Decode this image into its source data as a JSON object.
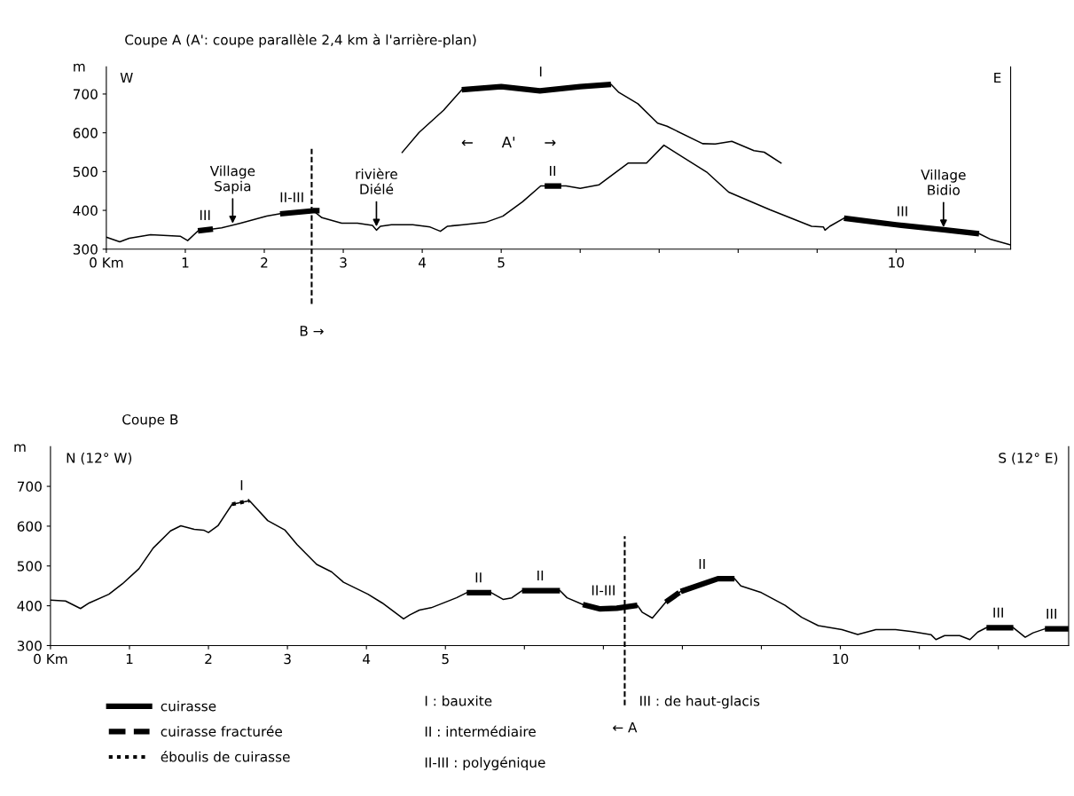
{
  "chart_data": [
    {
      "type": "line",
      "title": "Coupe A (A': coupe parallèle 2,4 km à l'arrière-plan)",
      "ylabel": "m",
      "xlim": [
        0,
        11.45
      ],
      "ylim": [
        300,
        770
      ],
      "xticks": [
        {
          "value": 0,
          "label": "0 Km"
        },
        1,
        2,
        3,
        4,
        5,
        {
          "value": 6,
          "label": null
        },
        {
          "value": 7,
          "label": null
        },
        {
          "value": 8,
          "label": null
        },
        {
          "value": 9,
          "label": null
        },
        10,
        {
          "value": 11,
          "label": null
        }
      ],
      "yticks": [
        300,
        400,
        500,
        600,
        700
      ],
      "grid": false,
      "marker": "none",
      "tick_labels": "xy",
      "series": [
        {
          "color": "#000000",
          "x": [
            0,
            0.17,
            0.29,
            0.56,
            0.94,
            1.03,
            1.16,
            1.46,
            1.7,
            2.03,
            2.3,
            2.62,
            2.73,
            2.98,
            3.18,
            3.37,
            3.42,
            3.47,
            3.61,
            3.88,
            4.1,
            4.23,
            4.32,
            4.52,
            4.8,
            5.02,
            5.27,
            5.5,
            5.82,
            6.0,
            6.24,
            6.61,
            6.84,
            7.06,
            7.6,
            7.88,
            8.4,
            8.93,
            9.08,
            9.1,
            9.16,
            9.34,
            10,
            10.6,
            11.05,
            11.2,
            11.45
          ],
          "values": [
            331,
            319,
            328,
            337,
            333,
            322,
            347,
            355,
            367,
            385,
            395,
            399,
            381,
            367,
            367,
            361,
            349,
            359,
            363,
            363,
            357,
            346,
            359,
            363,
            369,
            385,
            422,
            463,
            463,
            457,
            466,
            522,
            522,
            568,
            499,
            447,
            402,
            359,
            357,
            349,
            359,
            380,
            363,
            350,
            340,
            325,
            311
          ]
        },
        {
          "color": "#000000",
          "x": [
            3.74,
            3.96,
            4.27,
            4.5,
            5.0,
            5.49,
            6.0,
            6.39,
            6.49,
            6.73,
            6.98,
            7.1,
            7.55,
            7.71,
            7.92,
            8.2,
            8.33,
            8.55
          ],
          "values": [
            548,
            601,
            658,
            711,
            719,
            708,
            719,
            725,
            704,
            675,
            625,
            617,
            572,
            571,
            578,
            554,
            550,
            521
          ]
        },
        {
          "color": "#000000",
          "line_style": "solid",
          "x": [
            1.16,
            1.35,
            1.8,
            2.2,
            2.62,
            2.7,
            3.5,
            4.5,
            5.0,
            5.49,
            6.0,
            6.39,
            8.0,
            9.34,
            10,
            10.6,
            11.05
          ],
          "values": [
            347,
            352,
            null,
            391,
            399,
            399,
            null,
            711,
            719,
            708,
            719,
            725,
            null,
            380,
            363,
            350,
            340
          ]
        },
        {
          "color": "#000000",
          "line_style": "dashed",
          "x": [
            5.55,
            5.78
          ],
          "values": [
            463,
            463
          ]
        }
      ],
      "ref_lines": [
        {
          "axis": "x",
          "value": 2.6,
          "label": "B →",
          "line_style": "dashed"
        }
      ],
      "annotations": [
        "W",
        "E",
        "←      A'      →",
        {
          "text": "III",
          "x": 1.25,
          "y": 352
        },
        {
          "text": "Village\nSapia",
          "x": 1.6,
          "y": 360
        },
        {
          "text": "II-III",
          "x": 2.35,
          "y": 398
        },
        {
          "text": "rivière\nDiélé",
          "x": 3.42,
          "y": 352
        },
        {
          "text": "I",
          "x": 5.5,
          "y": 722
        },
        {
          "text": "II",
          "x": 5.65,
          "y": 466
        },
        {
          "text": "III",
          "x": 10.08,
          "y": 362
        },
        {
          "text": "Village\nBidio",
          "x": 10.6,
          "y": 350
        }
      ]
    },
    {
      "type": "line",
      "title": "Coupe B",
      "ylabel": "m",
      "xlim": [
        0,
        12.89
      ],
      "ylim": [
        300,
        800
      ],
      "xticks": [
        {
          "value": 0,
          "label": "0 Km"
        },
        1,
        2,
        3,
        4,
        5,
        {
          "value": 6,
          "label": null
        },
        {
          "value": 7,
          "label": null
        },
        {
          "value": 8,
          "label": null
        },
        {
          "value": 9,
          "label": null
        },
        10,
        {
          "value": 11,
          "label": null
        },
        {
          "value": 12,
          "label": null
        }
      ],
      "yticks": [
        300,
        400,
        500,
        600,
        700
      ],
      "grid": false,
      "marker": "none",
      "legend": "bottom",
      "series": [
        {
          "color": "#000000",
          "x": [
            0,
            0.19,
            0.38,
            0.49,
            0.74,
            0.91,
            1.12,
            1.3,
            1.52,
            1.65,
            1.82,
            1.94,
            2.0,
            2.12,
            2.3,
            2.52,
            2.75,
            2.97,
            3.12,
            3.37,
            3.56,
            3.71,
            4.02,
            4.2,
            4.47,
            4.55,
            4.67,
            4.82,
            5.14,
            5.27,
            5.58,
            5.73,
            5.84,
            5.97,
            6.45,
            6.54,
            6.74,
            6.96,
            7.17,
            7.43,
            7.49,
            7.62,
            7.79,
            7.98,
            8.45,
            8.66,
            8.74,
            9.0,
            9.3,
            9.51,
            9.72,
            10.02,
            10.22,
            10.45,
            10.7,
            10.91,
            11.15,
            11.21,
            11.32,
            11.51,
            11.64,
            11.74,
            11.85,
            12.19,
            12.34,
            12.44,
            12.59,
            12.89
          ],
          "values": [
            414,
            412,
            393,
            407,
            429,
            455,
            493,
            545,
            588,
            601,
            592,
            590,
            584,
            601,
            655,
            664,
            614,
            590,
            554,
            504,
            485,
            459,
            429,
            407,
            367,
            377,
            389,
            395,
            420,
            433,
            433,
            416,
            420,
            438,
            438,
            420,
            403,
            392,
            394,
            401,
            384,
            369,
            409,
            436,
            468,
            468,
            450,
            433,
            401,
            371,
            350,
            340,
            328,
            340,
            340,
            335,
            327,
            315,
            325,
            325,
            315,
            334,
            345,
            345,
            321,
            332,
            342,
            342
          ]
        },
        {
          "name": "cuirasse",
          "color": "#000000",
          "line_style": "solid",
          "x": [
            5.27,
            5.58,
            5.8,
            5.97,
            6.45,
            6.6,
            6.74,
            6.96,
            7.17,
            7.43,
            7.7,
            7.98,
            8.45,
            8.66,
            10,
            11.85,
            12.19,
            12.4,
            12.59,
            12.89
          ],
          "values": [
            433,
            433,
            null,
            438,
            438,
            null,
            403,
            392,
            394,
            401,
            null,
            436,
            468,
            468,
            null,
            345,
            345,
            null,
            342,
            342
          ]
        },
        {
          "name": "cuirasse fracturée",
          "color": "#000000",
          "line_style": "dashed",
          "x": [
            7.79,
            7.98
          ],
          "values": [
            409,
            436
          ]
        },
        {
          "name": "éboulis de cuirasse",
          "color": "#000000",
          "line_style": "dotted",
          "x": [
            2.3,
            2.52
          ],
          "values": [
            655,
            664
          ]
        }
      ],
      "ref_lines": [
        {
          "axis": "x",
          "value": 7.27,
          "label": "← A",
          "line_style": "dashed"
        }
      ],
      "annotations": [
        "N (12° W)",
        "S (12° E)",
        {
          "text": "I",
          "x": 2.42,
          "y": 668
        },
        {
          "text": "II",
          "x": 5.42,
          "y": 436
        },
        {
          "text": "II",
          "x": 6.2,
          "y": 441
        },
        {
          "text": "II-III",
          "x": 7.0,
          "y": 404
        },
        {
          "text": "II",
          "x": 8.25,
          "y": 470
        },
        {
          "text": "III",
          "x": 12.0,
          "y": 348
        },
        {
          "text": "III",
          "x": 12.75,
          "y": 345
        },
        "I : bauxite",
        "II : intermédiaire",
        "II-III : polygénique",
        "III : de haut-glacis"
      ]
    }
  ]
}
